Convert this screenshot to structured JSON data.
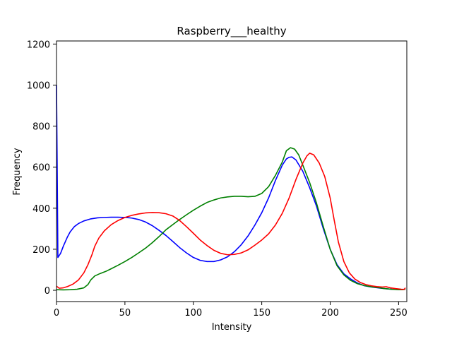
{
  "chart_data": {
    "type": "line",
    "title": "Raspberry___healthy",
    "xlabel": "Intensity",
    "ylabel": "Frequency",
    "xlim": [
      0,
      256
    ],
    "ylim": [
      -55,
      1215
    ],
    "xticks": [
      0,
      50,
      100,
      150,
      200,
      250
    ],
    "yticks": [
      0,
      200,
      400,
      600,
      800,
      1000,
      1200
    ],
    "grid": false,
    "legend": "none",
    "series": [
      {
        "color": "#0000ff",
        "points": [
          [
            0,
            1000
          ],
          [
            0.5,
            600
          ],
          [
            1,
            160
          ],
          [
            3,
            180
          ],
          [
            5,
            215
          ],
          [
            8,
            260
          ],
          [
            10,
            285
          ],
          [
            13,
            310
          ],
          [
            16,
            325
          ],
          [
            20,
            338
          ],
          [
            25,
            348
          ],
          [
            30,
            353
          ],
          [
            35,
            355
          ],
          [
            40,
            356
          ],
          [
            45,
            356
          ],
          [
            50,
            355
          ],
          [
            55,
            352
          ],
          [
            60,
            345
          ],
          [
            65,
            333
          ],
          [
            70,
            315
          ],
          [
            75,
            292
          ],
          [
            80,
            267
          ],
          [
            85,
            238
          ],
          [
            90,
            208
          ],
          [
            95,
            182
          ],
          [
            100,
            160
          ],
          [
            105,
            146
          ],
          [
            110,
            140
          ],
          [
            115,
            140
          ],
          [
            120,
            148
          ],
          [
            125,
            163
          ],
          [
            130,
            188
          ],
          [
            135,
            222
          ],
          [
            140,
            265
          ],
          [
            145,
            318
          ],
          [
            150,
            378
          ],
          [
            155,
            450
          ],
          [
            160,
            535
          ],
          [
            165,
            610
          ],
          [
            168,
            640
          ],
          [
            170,
            648
          ],
          [
            172,
            650
          ],
          [
            175,
            635
          ],
          [
            180,
            580
          ],
          [
            185,
            500
          ],
          [
            190,
            410
          ],
          [
            195,
            300
          ],
          [
            200,
            200
          ],
          [
            205,
            125
          ],
          [
            210,
            80
          ],
          [
            215,
            55
          ],
          [
            220,
            35
          ],
          [
            225,
            22
          ],
          [
            230,
            16
          ],
          [
            235,
            12
          ],
          [
            240,
            8
          ],
          [
            245,
            5
          ],
          [
            250,
            4
          ],
          [
            253,
            4
          ],
          [
            255,
            5
          ]
        ]
      },
      {
        "color": "#008000",
        "points": [
          [
            0,
            3
          ],
          [
            5,
            2
          ],
          [
            10,
            3
          ],
          [
            15,
            5
          ],
          [
            20,
            12
          ],
          [
            23,
            28
          ],
          [
            25,
            50
          ],
          [
            28,
            70
          ],
          [
            32,
            82
          ],
          [
            36,
            92
          ],
          [
            40,
            105
          ],
          [
            45,
            122
          ],
          [
            50,
            140
          ],
          [
            55,
            160
          ],
          [
            60,
            182
          ],
          [
            65,
            205
          ],
          [
            70,
            232
          ],
          [
            75,
            262
          ],
          [
            80,
            295
          ],
          [
            85,
            320
          ],
          [
            90,
            345
          ],
          [
            95,
            368
          ],
          [
            100,
            390
          ],
          [
            105,
            410
          ],
          [
            110,
            428
          ],
          [
            115,
            440
          ],
          [
            120,
            450
          ],
          [
            125,
            455
          ],
          [
            130,
            458
          ],
          [
            135,
            458
          ],
          [
            140,
            456
          ],
          [
            145,
            458
          ],
          [
            150,
            472
          ],
          [
            155,
            505
          ],
          [
            160,
            560
          ],
          [
            165,
            625
          ],
          [
            168,
            680
          ],
          [
            171,
            695
          ],
          [
            174,
            688
          ],
          [
            177,
            660
          ],
          [
            180,
            610
          ],
          [
            185,
            525
          ],
          [
            190,
            425
          ],
          [
            195,
            310
          ],
          [
            200,
            200
          ],
          [
            205,
            120
          ],
          [
            210,
            75
          ],
          [
            215,
            48
          ],
          [
            220,
            32
          ],
          [
            225,
            23
          ],
          [
            230,
            17
          ],
          [
            235,
            13
          ],
          [
            240,
            8
          ],
          [
            245,
            5
          ],
          [
            250,
            3
          ],
          [
            253,
            3
          ],
          [
            255,
            5
          ]
        ]
      },
      {
        "color": "#ff0000",
        "points": [
          [
            0,
            20
          ],
          [
            2,
            10
          ],
          [
            5,
            12
          ],
          [
            8,
            18
          ],
          [
            12,
            30
          ],
          [
            16,
            50
          ],
          [
            20,
            85
          ],
          [
            23,
            125
          ],
          [
            26,
            175
          ],
          [
            28,
            215
          ],
          [
            31,
            255
          ],
          [
            35,
            290
          ],
          [
            40,
            320
          ],
          [
            45,
            340
          ],
          [
            50,
            355
          ],
          [
            55,
            365
          ],
          [
            60,
            372
          ],
          [
            65,
            377
          ],
          [
            70,
            379
          ],
          [
            75,
            378
          ],
          [
            80,
            373
          ],
          [
            85,
            362
          ],
          [
            90,
            340
          ],
          [
            95,
            310
          ],
          [
            100,
            278
          ],
          [
            105,
            245
          ],
          [
            110,
            218
          ],
          [
            115,
            195
          ],
          [
            120,
            180
          ],
          [
            125,
            173
          ],
          [
            130,
            175
          ],
          [
            135,
            182
          ],
          [
            140,
            197
          ],
          [
            145,
            220
          ],
          [
            150,
            245
          ],
          [
            155,
            275
          ],
          [
            160,
            318
          ],
          [
            165,
            375
          ],
          [
            170,
            450
          ],
          [
            175,
            540
          ],
          [
            180,
            620
          ],
          [
            183,
            655
          ],
          [
            185,
            668
          ],
          [
            188,
            660
          ],
          [
            192,
            620
          ],
          [
            196,
            555
          ],
          [
            200,
            450
          ],
          [
            203,
            340
          ],
          [
            206,
            235
          ],
          [
            210,
            140
          ],
          [
            214,
            85
          ],
          [
            218,
            55
          ],
          [
            222,
            38
          ],
          [
            226,
            28
          ],
          [
            230,
            22
          ],
          [
            234,
            18
          ],
          [
            238,
            16
          ],
          [
            241,
            17
          ],
          [
            244,
            12
          ],
          [
            248,
            8
          ],
          [
            252,
            5
          ],
          [
            254,
            4
          ],
          [
            255,
            12
          ]
        ]
      }
    ]
  }
}
